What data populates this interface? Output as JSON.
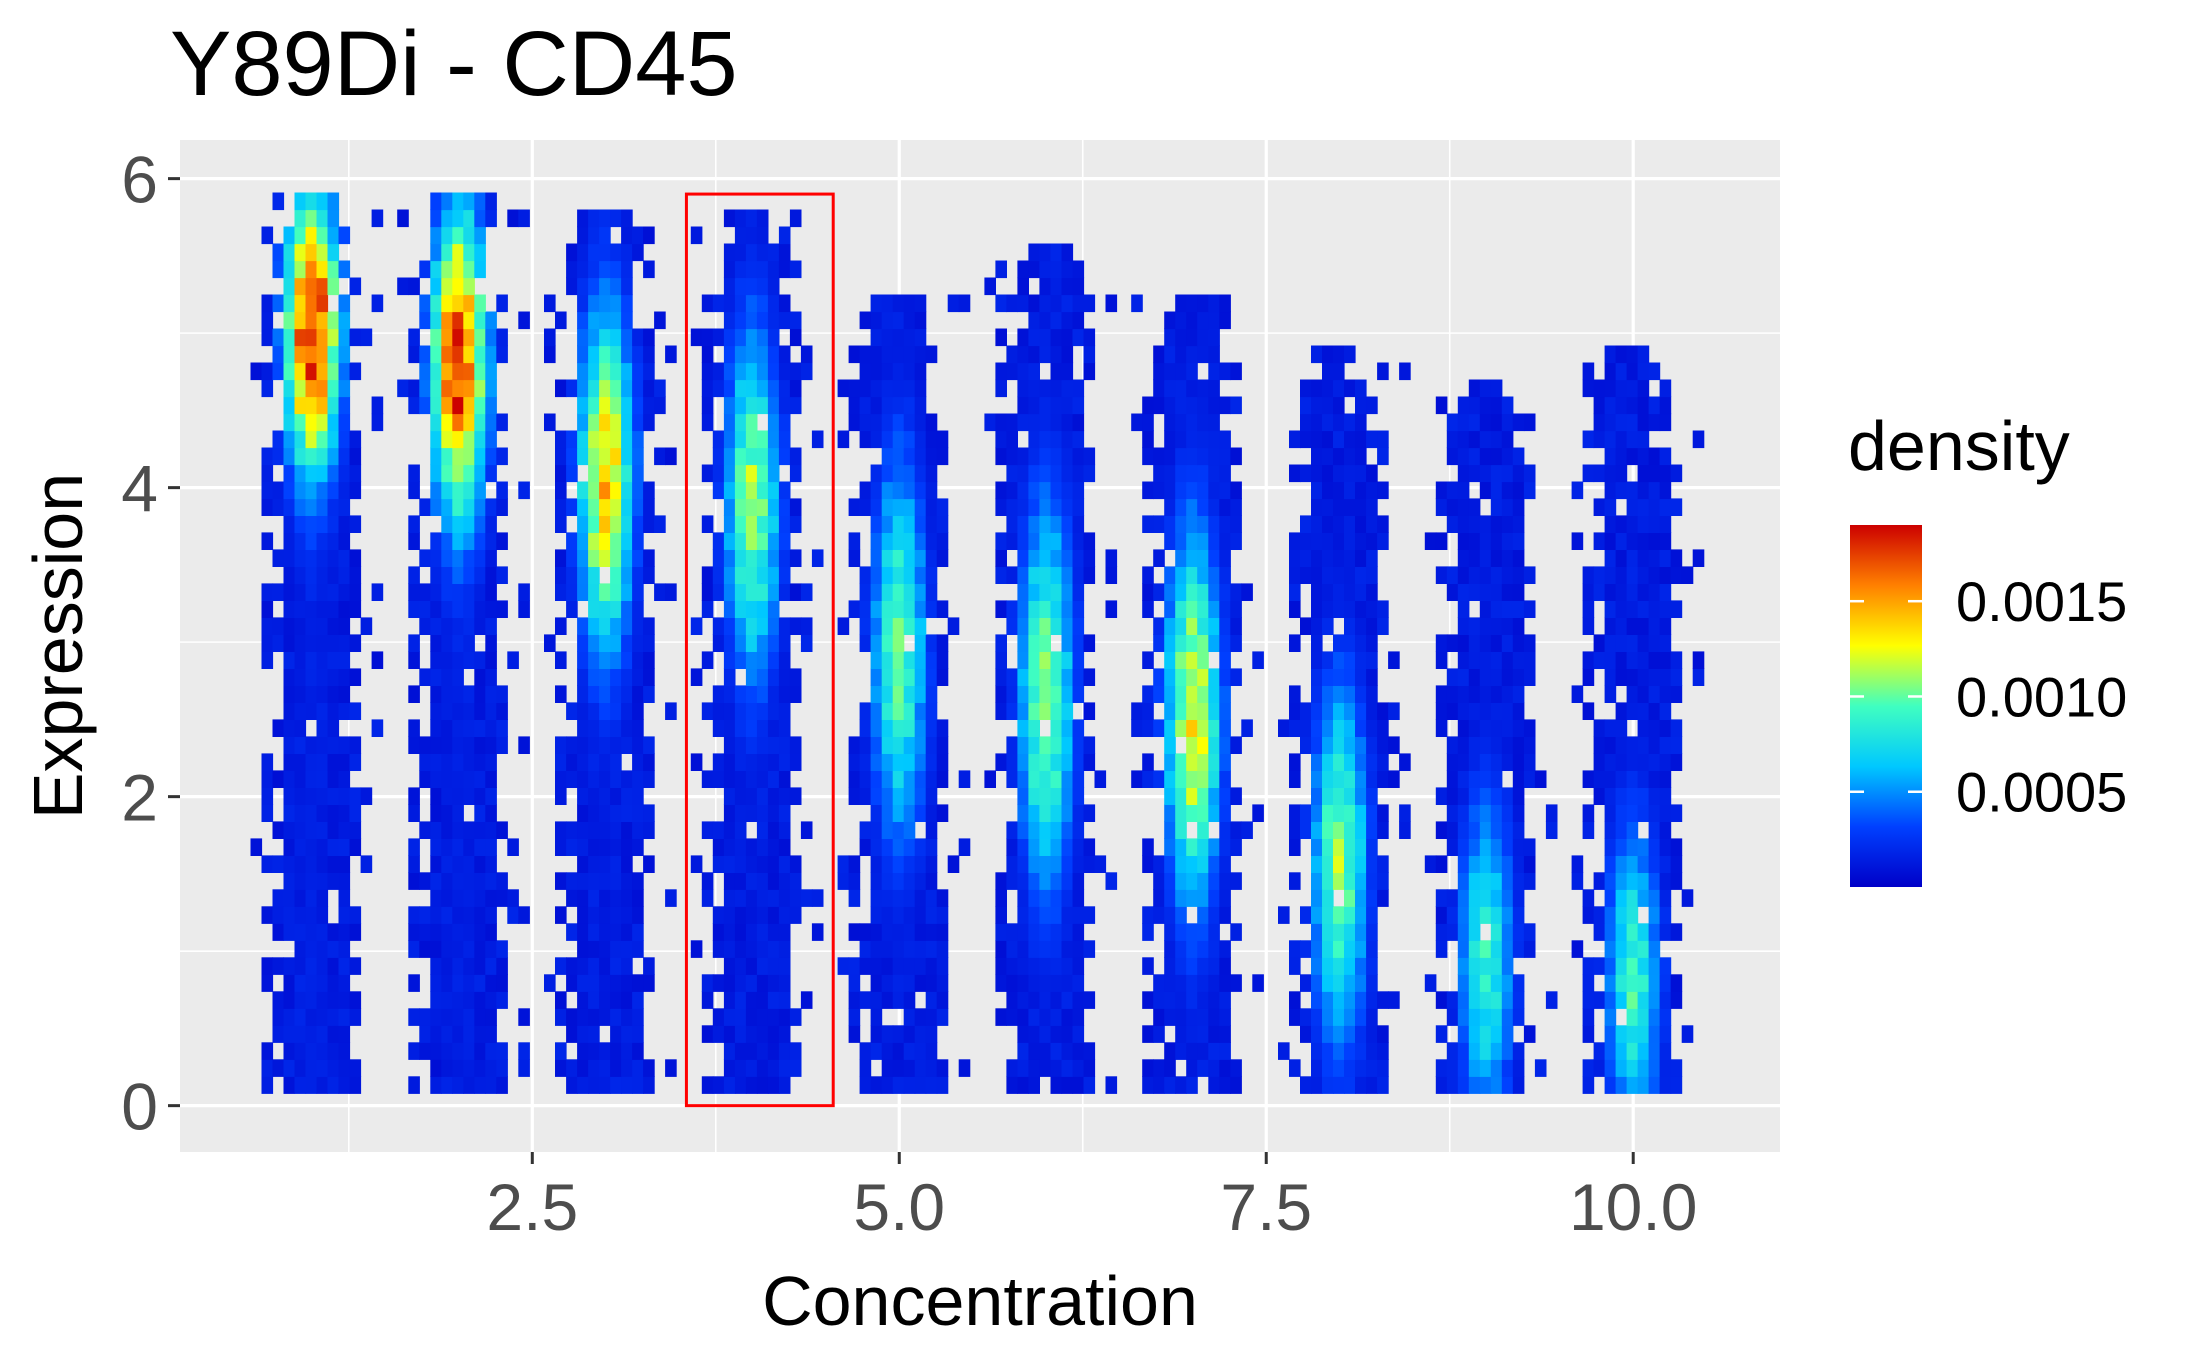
{
  "chart_data": {
    "type": "heatmap",
    "title": "Y89Di - CD45",
    "xlabel": "Concentration",
    "ylabel": "Expression",
    "xlim": [
      0.1,
      11.0
    ],
    "ylim": [
      -0.3,
      6.25
    ],
    "x_ticks": [
      {
        "value": 2.5,
        "label": "2.5"
      },
      {
        "value": 5.0,
        "label": "5.0"
      },
      {
        "value": 7.5,
        "label": "7.5"
      },
      {
        "value": 10.0,
        "label": "10.0"
      }
    ],
    "y_ticks": [
      {
        "value": 0,
        "label": "0"
      },
      {
        "value": 2,
        "label": "2"
      },
      {
        "value": 4,
        "label": "4"
      },
      {
        "value": 6,
        "label": "6"
      }
    ],
    "grid": true,
    "panel_color": "#ebebeb",
    "legend": {
      "title": "density",
      "placement": "right",
      "range": [
        0,
        0.0019
      ],
      "ticks": [
        {
          "value": 0.0015,
          "label": "0.0015"
        },
        {
          "value": 0.001,
          "label": "0.0010"
        },
        {
          "value": 0.0005,
          "label": "0.0005"
        }
      ],
      "colors": [
        "#0000c8",
        "#0040ff",
        "#00c8ff",
        "#40ffc0",
        "#ffff00",
        "#ff8000",
        "#cc0000"
      ]
    },
    "series": [
      {
        "x": 1,
        "y_min": 0.08,
        "y_max": 5.85,
        "peak_y": 4.95,
        "peak_density": 0.0019,
        "spread": 0.85
      },
      {
        "x": 2,
        "y_min": 0.08,
        "y_max": 5.85,
        "peak_y": 4.75,
        "peak_density": 0.0018,
        "spread": 0.95
      },
      {
        "x": 3,
        "y_min": 0.08,
        "y_max": 5.75,
        "peak_y": 4.0,
        "peak_density": 0.0014,
        "spread": 1.05
      },
      {
        "x": 4,
        "y_min": 0.08,
        "y_max": 5.7,
        "peak_y": 3.85,
        "peak_density": 0.0011,
        "spread": 1.1
      },
      {
        "x": 5,
        "y_min": 0.08,
        "y_max": 5.25,
        "peak_y": 2.9,
        "peak_density": 0.001,
        "spread": 1.2
      },
      {
        "x": 6,
        "y_min": 0.08,
        "y_max": 5.5,
        "peak_y": 2.6,
        "peak_density": 0.0011,
        "spread": 1.2
      },
      {
        "x": 7,
        "y_min": 0.08,
        "y_max": 5.15,
        "peak_y": 2.45,
        "peak_density": 0.0013,
        "spread": 1.15
      },
      {
        "x": 8,
        "y_min": 0.08,
        "y_max": 4.9,
        "peak_y": 1.5,
        "peak_density": 0.0011,
        "spread": 1.1
      },
      {
        "x": 9,
        "y_min": 0.08,
        "y_max": 4.6,
        "peak_y": 0.9,
        "peak_density": 0.0009,
        "spread": 1.0
      },
      {
        "x": 10,
        "y_min": 0.08,
        "y_max": 4.9,
        "peak_y": 0.75,
        "peak_density": 0.0009,
        "spread": 1.0
      }
    ],
    "annotations": [
      {
        "type": "rectangle",
        "color": "#ff0000",
        "x_min": 3.55,
        "x_max": 4.55,
        "y_min": 0.0,
        "y_max": 5.9
      }
    ]
  }
}
